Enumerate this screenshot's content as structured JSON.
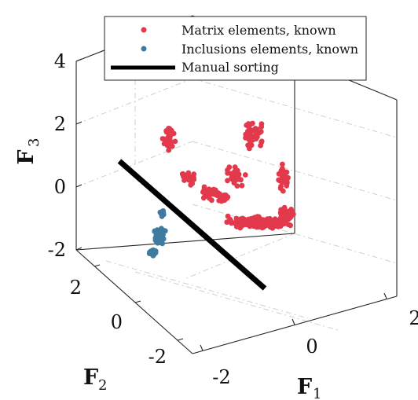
{
  "chart_data": {
    "type": "scatter",
    "projection": "3d",
    "grid": true,
    "legend_position": "top",
    "axes": {
      "x": {
        "label": "F",
        "label_sub": "1",
        "ticks": [
          "-2",
          "0",
          "2"
        ],
        "range": [
          -2,
          2
        ]
      },
      "y": {
        "label": "F",
        "label_sub": "2",
        "ticks": [
          "-2",
          "0",
          "2"
        ],
        "range": [
          -2,
          2
        ]
      },
      "z": {
        "label": "F",
        "label_sub": "3",
        "ticks": [
          "-2",
          "0",
          "2",
          "4"
        ],
        "range": [
          -2,
          4
        ]
      }
    },
    "series": [
      {
        "name": "Matrix elements, known",
        "marker": "point",
        "color": "#e2394c"
      },
      {
        "name": "Inclusions elements, known",
        "marker": "point",
        "color": "#3f7aa0"
      },
      {
        "name": "Manual sorting",
        "marker": "line",
        "color": "#000000"
      }
    ]
  }
}
